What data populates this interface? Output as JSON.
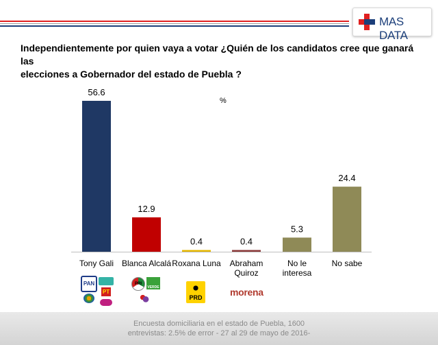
{
  "brand": {
    "name": "MAS DATA",
    "colors": {
      "red": "#e02020",
      "blue": "#1c3f7a"
    }
  },
  "title_line1": "Independientemente por quien vaya a votar ¿Quién de los candidatos cree que ganará las",
  "title_line2": "elecciones a Gobernador del estado de Puebla ?",
  "chart_data": {
    "type": "bar",
    "title": "Independientemente por quien vaya a votar ¿Quién de los candidatos cree que ganará las elecciones a Gobernador del estado de Puebla ?",
    "unit_label": "%",
    "ylim": [
      0,
      60
    ],
    "grid": false,
    "categories": [
      [
        "Tony Gali"
      ],
      [
        "Blanca Alcalá"
      ],
      [
        "Roxana Luna"
      ],
      [
        "Abraham",
        "Quiroz"
      ],
      [
        "No le",
        "interesa"
      ],
      [
        "No sabe"
      ]
    ],
    "values": [
      56.6,
      12.9,
      0.4,
      0.4,
      5.3,
      24.4
    ],
    "value_labels": [
      "56.6",
      "12.9",
      "0.4",
      "0.4",
      "5.3",
      "24.4"
    ],
    "colors": [
      "#1f3864",
      "#c00000",
      "#e6b800",
      "#8b3a3a",
      "#8f8a57",
      "#8f8a57"
    ]
  },
  "party_logos": {
    "gali": [
      "PAN",
      "PT"
    ],
    "alcala": [
      "PRI",
      "VERDE"
    ],
    "luna": [
      "PRD"
    ],
    "quiroz": [
      "morena"
    ]
  },
  "footer": {
    "line1": "Encuesta domiciliaria en el estado de Puebla, 1600",
    "line2": "entrevistas: 2.5% de error - 27 al 29 de mayo de 2016-"
  }
}
